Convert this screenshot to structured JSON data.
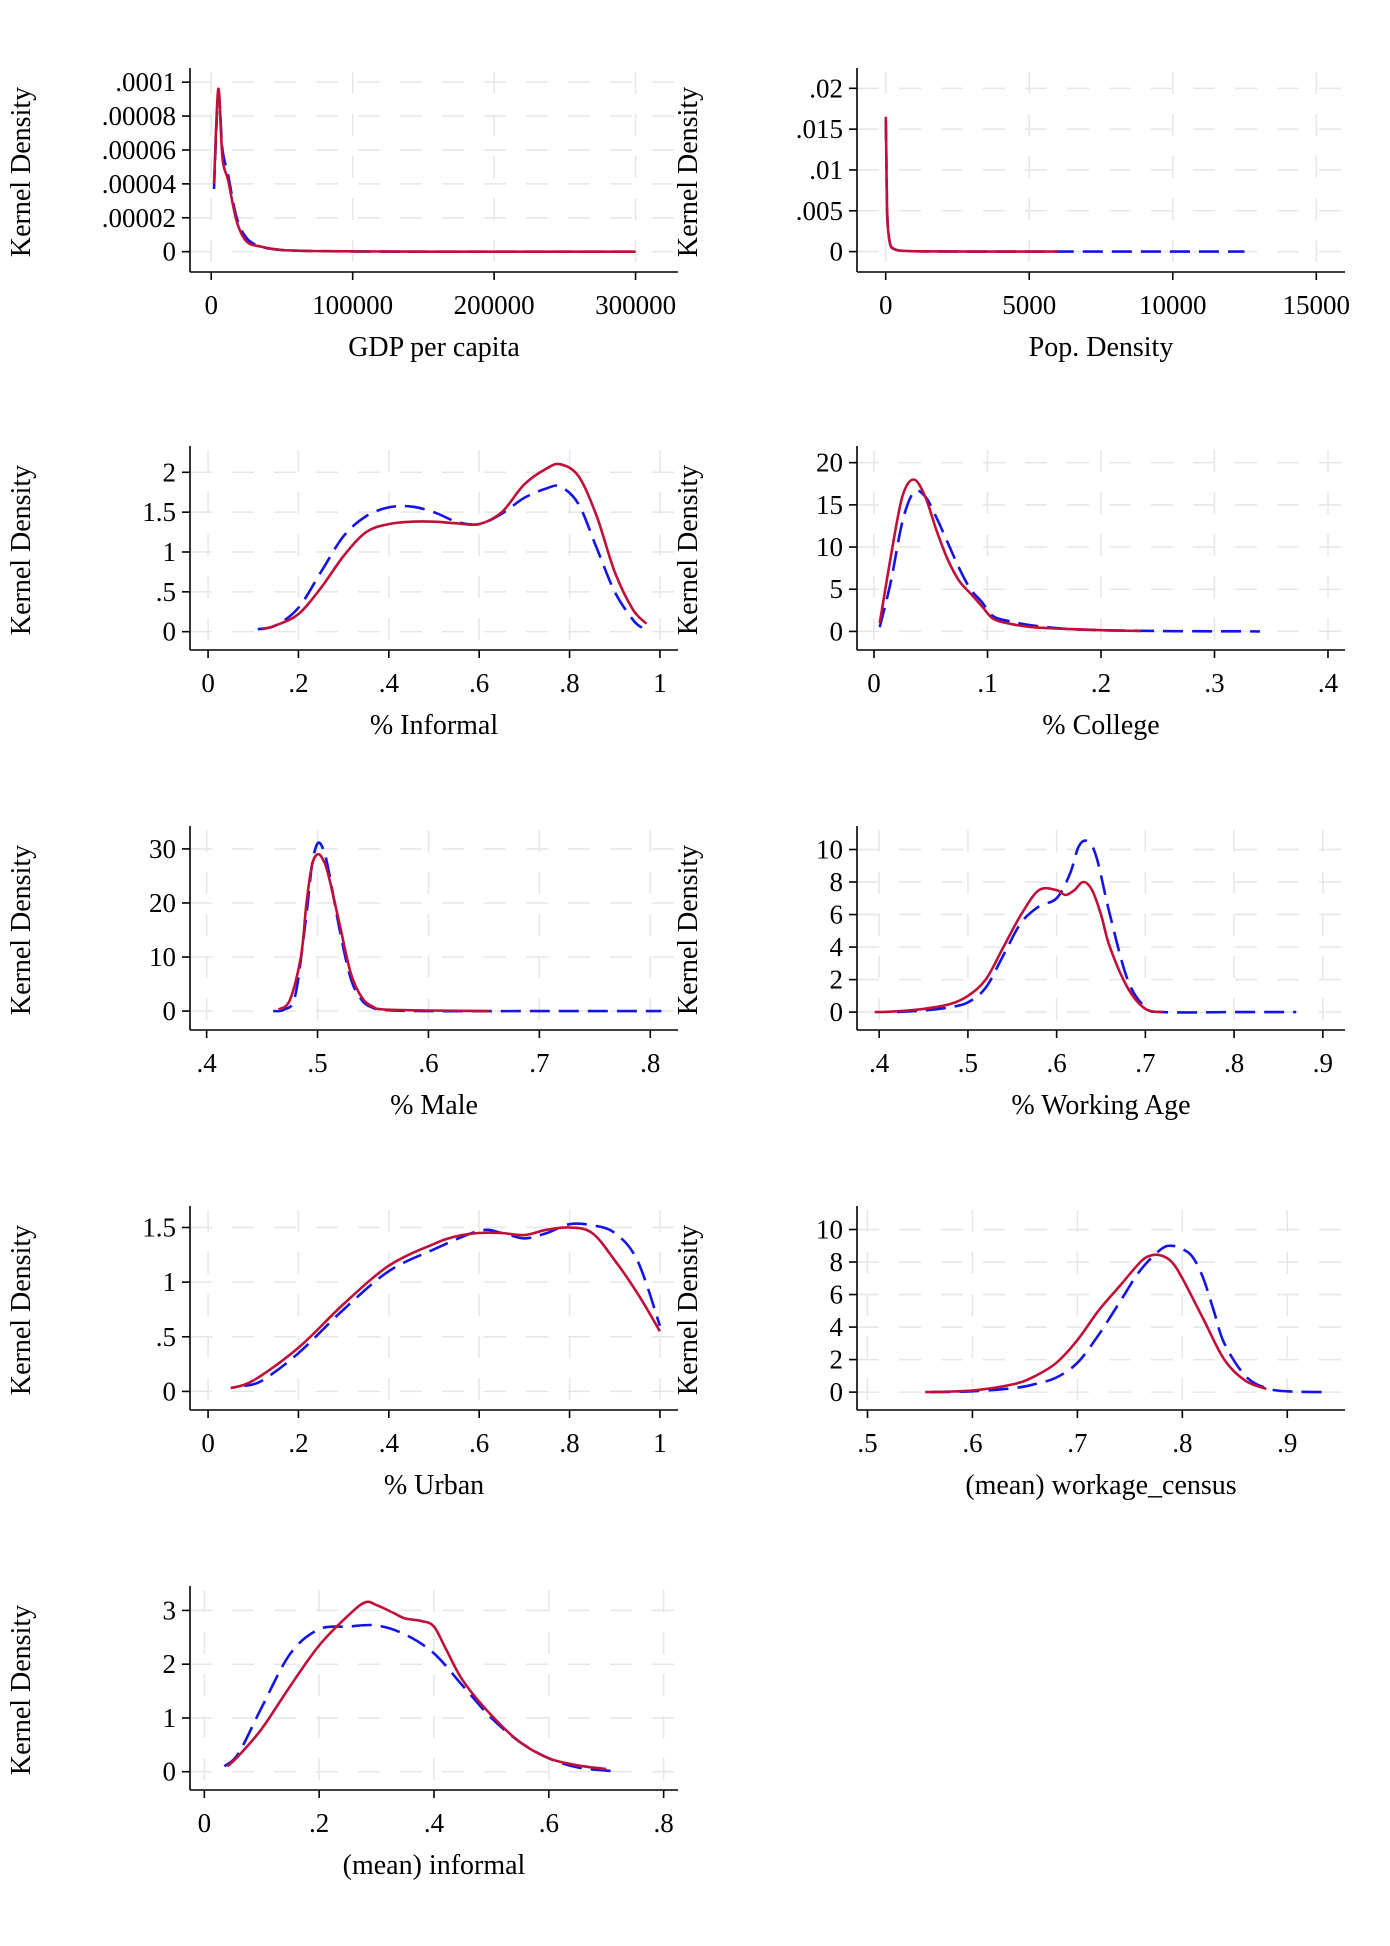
{
  "figure": {
    "background": "#ffffff",
    "grid_color": "#e6e6e6",
    "series_styles": [
      {
        "color": "#1414e6",
        "dash": "dashed"
      },
      {
        "color": "#c0103a",
        "dash": "solid"
      }
    ]
  },
  "chart_data": [
    {
      "type": "line",
      "xlabel": "GDP per capita",
      "ylabel": "Kernel Density",
      "xlim": [
        -15000,
        330000
      ],
      "ylim": [
        -1.2e-05,
        0.000106
      ],
      "xticks": [
        0,
        100000,
        200000,
        300000
      ],
      "xtick_labels": [
        "0",
        "100000",
        "200000",
        "300000"
      ],
      "yticks": [
        0,
        2e-05,
        4e-05,
        6e-05,
        8e-05,
        0.0001
      ],
      "ytick_labels": [
        "0",
        ".00002",
        ".00004",
        ".00006",
        ".00008",
        ".0001"
      ],
      "grid": true,
      "series": [
        {
          "x": [
            2000,
            5000,
            8000,
            12000,
            18000,
            25000,
            35000,
            50000,
            80000,
            150000,
            300000
          ],
          "y": [
            3.7e-05,
            9.2e-05,
            6e-05,
            4.5e-05,
            2e-05,
            8e-06,
            3e-06,
            1e-06,
            3e-07,
            0,
            0
          ]
        },
        {
          "x": [
            2000,
            5000,
            8000,
            12000,
            18000,
            25000,
            35000,
            50000,
            80000,
            150000,
            300000
          ],
          "y": [
            4e-05,
            9.6e-05,
            5.5e-05,
            4.2e-05,
            1.8e-05,
            6e-06,
            3e-06,
            1e-06,
            3e-07,
            0,
            0
          ]
        }
      ]
    },
    {
      "type": "line",
      "xlabel": "Pop. Density",
      "ylabel": "Kernel Density",
      "xlim": [
        -1000,
        16000
      ],
      "ylim": [
        -0.0025,
        0.022
      ],
      "xticks": [
        0,
        5000,
        10000,
        15000
      ],
      "xtick_labels": [
        "0",
        "5000",
        "10000",
        "15000"
      ],
      "yticks": [
        0,
        0.005,
        0.01,
        0.015,
        0.02
      ],
      "ytick_labels": [
        "0",
        ".005",
        ".01",
        ".015",
        ".02"
      ],
      "grid": true,
      "series": [
        {
          "x": [
            5,
            20,
            60,
            150,
            300,
            600,
            1200,
            3000,
            6000,
            12500
          ],
          "y": [
            0.016,
            0.012,
            0.004,
            0.001,
            0.0003,
            0.0001,
            3e-05,
            0,
            0,
            0
          ]
        },
        {
          "x": [
            5,
            20,
            60,
            150,
            300,
            600,
            1200,
            3000,
            6000
          ],
          "y": [
            0.0165,
            0.012,
            0.004,
            0.001,
            0.0003,
            0.0001,
            3e-05,
            0,
            0
          ]
        }
      ]
    },
    {
      "type": "line",
      "xlabel": "% Informal",
      "ylabel": "Kernel Density",
      "xlim": [
        -0.04,
        1.04
      ],
      "ylim": [
        -0.23,
        2.28
      ],
      "xticks": [
        0,
        0.2,
        0.4,
        0.6,
        0.8,
        1
      ],
      "xtick_labels": [
        "0",
        ".2",
        ".4",
        ".6",
        ".8",
        "1"
      ],
      "yticks": [
        0,
        0.5,
        1,
        1.5,
        2
      ],
      "ytick_labels": [
        "0",
        ".5",
        "1",
        "1.5",
        "2"
      ],
      "grid": true,
      "series": [
        {
          "x": [
            0.11,
            0.15,
            0.2,
            0.25,
            0.3,
            0.35,
            0.4,
            0.45,
            0.5,
            0.55,
            0.6,
            0.65,
            0.7,
            0.75,
            0.78,
            0.82,
            0.86,
            0.9,
            0.94,
            0.96
          ],
          "y": [
            0.03,
            0.08,
            0.3,
            0.75,
            1.2,
            1.45,
            1.56,
            1.57,
            1.5,
            1.38,
            1.35,
            1.48,
            1.68,
            1.8,
            1.82,
            1.6,
            1.05,
            0.5,
            0.15,
            0.05
          ]
        },
        {
          "x": [
            0.12,
            0.15,
            0.2,
            0.25,
            0.3,
            0.35,
            0.4,
            0.45,
            0.5,
            0.55,
            0.6,
            0.65,
            0.7,
            0.75,
            0.78,
            0.82,
            0.86,
            0.9,
            0.94,
            0.97
          ],
          "y": [
            0.03,
            0.08,
            0.22,
            0.55,
            0.95,
            1.25,
            1.35,
            1.38,
            1.38,
            1.36,
            1.35,
            1.5,
            1.85,
            2.05,
            2.1,
            1.95,
            1.45,
            0.75,
            0.28,
            0.1
          ]
        }
      ]
    },
    {
      "type": "line",
      "xlabel": "% College",
      "ylabel": "Kernel Density",
      "xlim": [
        -0.015,
        0.415
      ],
      "ylim": [
        -2.2,
        21.5
      ],
      "xticks": [
        0,
        0.1,
        0.2,
        0.3,
        0.4
      ],
      "xtick_labels": [
        "0",
        ".1",
        ".2",
        ".3",
        ".4"
      ],
      "yticks": [
        0,
        5,
        10,
        15,
        20
      ],
      "ytick_labels": [
        "0",
        "5",
        "10",
        "15",
        "20"
      ],
      "grid": true,
      "series": [
        {
          "x": [
            0.005,
            0.015,
            0.025,
            0.035,
            0.045,
            0.055,
            0.065,
            0.075,
            0.085,
            0.095,
            0.105,
            0.12,
            0.14,
            0.17,
            0.2,
            0.25,
            0.3,
            0.34
          ],
          "y": [
            0.5,
            6,
            13,
            16.5,
            16,
            13.5,
            10.5,
            7.5,
            5,
            3.5,
            1.8,
            1.2,
            0.7,
            0.3,
            0.15,
            0.05,
            0.02,
            0
          ]
        },
        {
          "x": [
            0.005,
            0.015,
            0.025,
            0.035,
            0.045,
            0.055,
            0.065,
            0.075,
            0.085,
            0.095,
            0.105,
            0.12,
            0.14,
            0.17,
            0.2,
            0.235
          ],
          "y": [
            1,
            9,
            16,
            18,
            16,
            12,
            8.5,
            6,
            4.5,
            3,
            1.5,
            0.9,
            0.5,
            0.3,
            0.15,
            0.05
          ]
        }
      ]
    },
    {
      "type": "line",
      "xlabel": "% Male",
      "ylabel": "Kernel Density",
      "xlim": [
        0.385,
        0.825
      ],
      "ylim": [
        -3.5,
        33.5
      ],
      "xticks": [
        0.4,
        0.5,
        0.6,
        0.7,
        0.8
      ],
      "xtick_labels": [
        ".4",
        ".5",
        ".6",
        ".7",
        ".8"
      ],
      "yticks": [
        0,
        10,
        20,
        30
      ],
      "ytick_labels": [
        "0",
        "10",
        "20",
        "30"
      ],
      "grid": true,
      "series": [
        {
          "x": [
            0.46,
            0.47,
            0.48,
            0.49,
            0.495,
            0.5,
            0.505,
            0.51,
            0.52,
            0.53,
            0.54,
            0.55,
            0.56,
            0.6,
            0.7,
            0.81
          ],
          "y": [
            0,
            0.3,
            3,
            18,
            27,
            31,
            30,
            26,
            15,
            6,
            2,
            0.6,
            0.2,
            0,
            0,
            0
          ]
        },
        {
          "x": [
            0.465,
            0.475,
            0.485,
            0.49,
            0.495,
            0.5,
            0.505,
            0.51,
            0.52,
            0.53,
            0.54,
            0.55,
            0.56,
            0.6,
            0.655
          ],
          "y": [
            0.3,
            2,
            10,
            20,
            27,
            29,
            28,
            25,
            16,
            7,
            2.5,
            0.8,
            0.3,
            0.1,
            0
          ]
        }
      ]
    },
    {
      "type": "line",
      "xlabel": "% Working Age",
      "ylabel": "Kernel Density",
      "xlim": [
        0.375,
        0.925
      ],
      "ylim": [
        -1.1,
        11.2
      ],
      "xticks": [
        0.4,
        0.5,
        0.6,
        0.7,
        0.8,
        0.9
      ],
      "xtick_labels": [
        ".4",
        ".5",
        ".6",
        ".7",
        ".8",
        ".9"
      ],
      "yticks": [
        0,
        2,
        4,
        6,
        8,
        10
      ],
      "ytick_labels": [
        "0",
        "2",
        "4",
        "6",
        "8",
        "10"
      ],
      "grid": true,
      "series": [
        {
          "x": [
            0.42,
            0.45,
            0.48,
            0.5,
            0.52,
            0.54,
            0.56,
            0.58,
            0.6,
            0.615,
            0.625,
            0.635,
            0.645,
            0.66,
            0.68,
            0.7,
            0.72,
            0.8,
            0.87
          ],
          "y": [
            0,
            0.1,
            0.3,
            0.6,
            1.5,
            3.5,
            5.5,
            6.5,
            7,
            8.5,
            10.2,
            10.5,
            9.5,
            6,
            2,
            0.3,
            0,
            0,
            0
          ]
        },
        {
          "x": [
            0.395,
            0.42,
            0.45,
            0.48,
            0.5,
            0.52,
            0.54,
            0.56,
            0.58,
            0.6,
            0.61,
            0.62,
            0.63,
            0.64,
            0.65,
            0.66,
            0.68,
            0.7,
            0.72
          ],
          "y": [
            0,
            0.05,
            0.2,
            0.5,
            1,
            2,
            4,
            6,
            7.5,
            7.5,
            7.2,
            7.5,
            8,
            7.5,
            6,
            4,
            1.5,
            0.2,
            0
          ]
        }
      ]
    },
    {
      "type": "line",
      "xlabel": "% Urban",
      "ylabel": "Kernel Density",
      "xlim": [
        -0.04,
        1.04
      ],
      "ylim": [
        -0.17,
        1.66
      ],
      "xticks": [
        0,
        0.2,
        0.4,
        0.6,
        0.8,
        1
      ],
      "xtick_labels": [
        "0",
        ".2",
        ".4",
        ".6",
        ".8",
        "1"
      ],
      "yticks": [
        0,
        0.5,
        1,
        1.5
      ],
      "ytick_labels": [
        "0",
        ".5",
        "1",
        "1.5"
      ],
      "grid": true,
      "series": [
        {
          "x": [
            0.08,
            0.12,
            0.2,
            0.3,
            0.4,
            0.5,
            0.6,
            0.65,
            0.7,
            0.75,
            0.8,
            0.85,
            0.9,
            0.95,
            1.0
          ],
          "y": [
            0.05,
            0.1,
            0.35,
            0.75,
            1.1,
            1.3,
            1.47,
            1.45,
            1.4,
            1.45,
            1.53,
            1.52,
            1.45,
            1.2,
            0.6
          ]
        },
        {
          "x": [
            0.05,
            0.1,
            0.2,
            0.3,
            0.4,
            0.5,
            0.55,
            0.6,
            0.65,
            0.7,
            0.75,
            0.8,
            0.85,
            0.9,
            0.95,
            1.0
          ],
          "y": [
            0.03,
            0.1,
            0.4,
            0.8,
            1.15,
            1.35,
            1.42,
            1.45,
            1.45,
            1.43,
            1.48,
            1.5,
            1.45,
            1.2,
            0.9,
            0.55
          ]
        }
      ]
    },
    {
      "type": "line",
      "xlabel": "(mean) workage_census",
      "ylabel": "Kernel Density",
      "xlim": [
        0.49,
        0.955
      ],
      "ylim": [
        -1.1,
        11.2
      ],
      "xticks": [
        0.5,
        0.6,
        0.7,
        0.8,
        0.9
      ],
      "xtick_labels": [
        ".5",
        ".6",
        ".7",
        ".8",
        ".9"
      ],
      "yticks": [
        0,
        2,
        4,
        6,
        8,
        10
      ],
      "ytick_labels": [
        "0",
        "2",
        "4",
        "6",
        "8",
        "10"
      ],
      "grid": true,
      "series": [
        {
          "x": [
            0.56,
            0.6,
            0.64,
            0.66,
            0.68,
            0.7,
            0.72,
            0.74,
            0.76,
            0.78,
            0.79,
            0.8,
            0.81,
            0.82,
            0.83,
            0.84,
            0.86,
            0.88,
            0.9,
            0.94
          ],
          "y": [
            0,
            0.05,
            0.25,
            0.5,
            0.9,
            1.8,
            3.5,
            5.5,
            7.5,
            8.8,
            9,
            8.8,
            8.3,
            7,
            5,
            3,
            1,
            0.25,
            0.05,
            0
          ]
        },
        {
          "x": [
            0.555,
            0.6,
            0.64,
            0.66,
            0.68,
            0.7,
            0.72,
            0.74,
            0.76,
            0.77,
            0.78,
            0.79,
            0.8,
            0.82,
            0.84,
            0.86,
            0.88
          ],
          "y": [
            0,
            0.1,
            0.5,
            1,
            1.8,
            3.2,
            5,
            6.5,
            8,
            8.4,
            8.4,
            8,
            7,
            4.5,
            2,
            0.7,
            0.2
          ]
        }
      ]
    },
    {
      "type": "line",
      "xlabel": "(mean) informal",
      "ylabel": "Kernel Density",
      "xlim": [
        -0.025,
        0.825
      ],
      "ylim": [
        -0.34,
        3.38
      ],
      "xticks": [
        0,
        0.2,
        0.4,
        0.6,
        0.8
      ],
      "xtick_labels": [
        "0",
        ".2",
        ".4",
        ".6",
        ".8"
      ],
      "yticks": [
        0,
        1,
        2,
        3
      ],
      "ytick_labels": [
        "0",
        "1",
        "2",
        "3"
      ],
      "grid": true,
      "series": [
        {
          "x": [
            0.035,
            0.06,
            0.1,
            0.15,
            0.2,
            0.25,
            0.3,
            0.35,
            0.4,
            0.45,
            0.5,
            0.55,
            0.6,
            0.65,
            0.7,
            0.72
          ],
          "y": [
            0.1,
            0.35,
            1.2,
            2.2,
            2.65,
            2.7,
            2.72,
            2.55,
            2.2,
            1.6,
            1.0,
            0.55,
            0.25,
            0.08,
            0.02,
            0.01
          ]
        },
        {
          "x": [
            0.04,
            0.06,
            0.1,
            0.15,
            0.2,
            0.25,
            0.28,
            0.3,
            0.33,
            0.35,
            0.38,
            0.4,
            0.42,
            0.45,
            0.5,
            0.55,
            0.6,
            0.65,
            0.7
          ],
          "y": [
            0.1,
            0.3,
            0.8,
            1.6,
            2.35,
            2.9,
            3.15,
            3.1,
            2.95,
            2.85,
            2.8,
            2.7,
            2.3,
            1.7,
            1.05,
            0.55,
            0.25,
            0.12,
            0.05
          ]
        }
      ]
    }
  ]
}
